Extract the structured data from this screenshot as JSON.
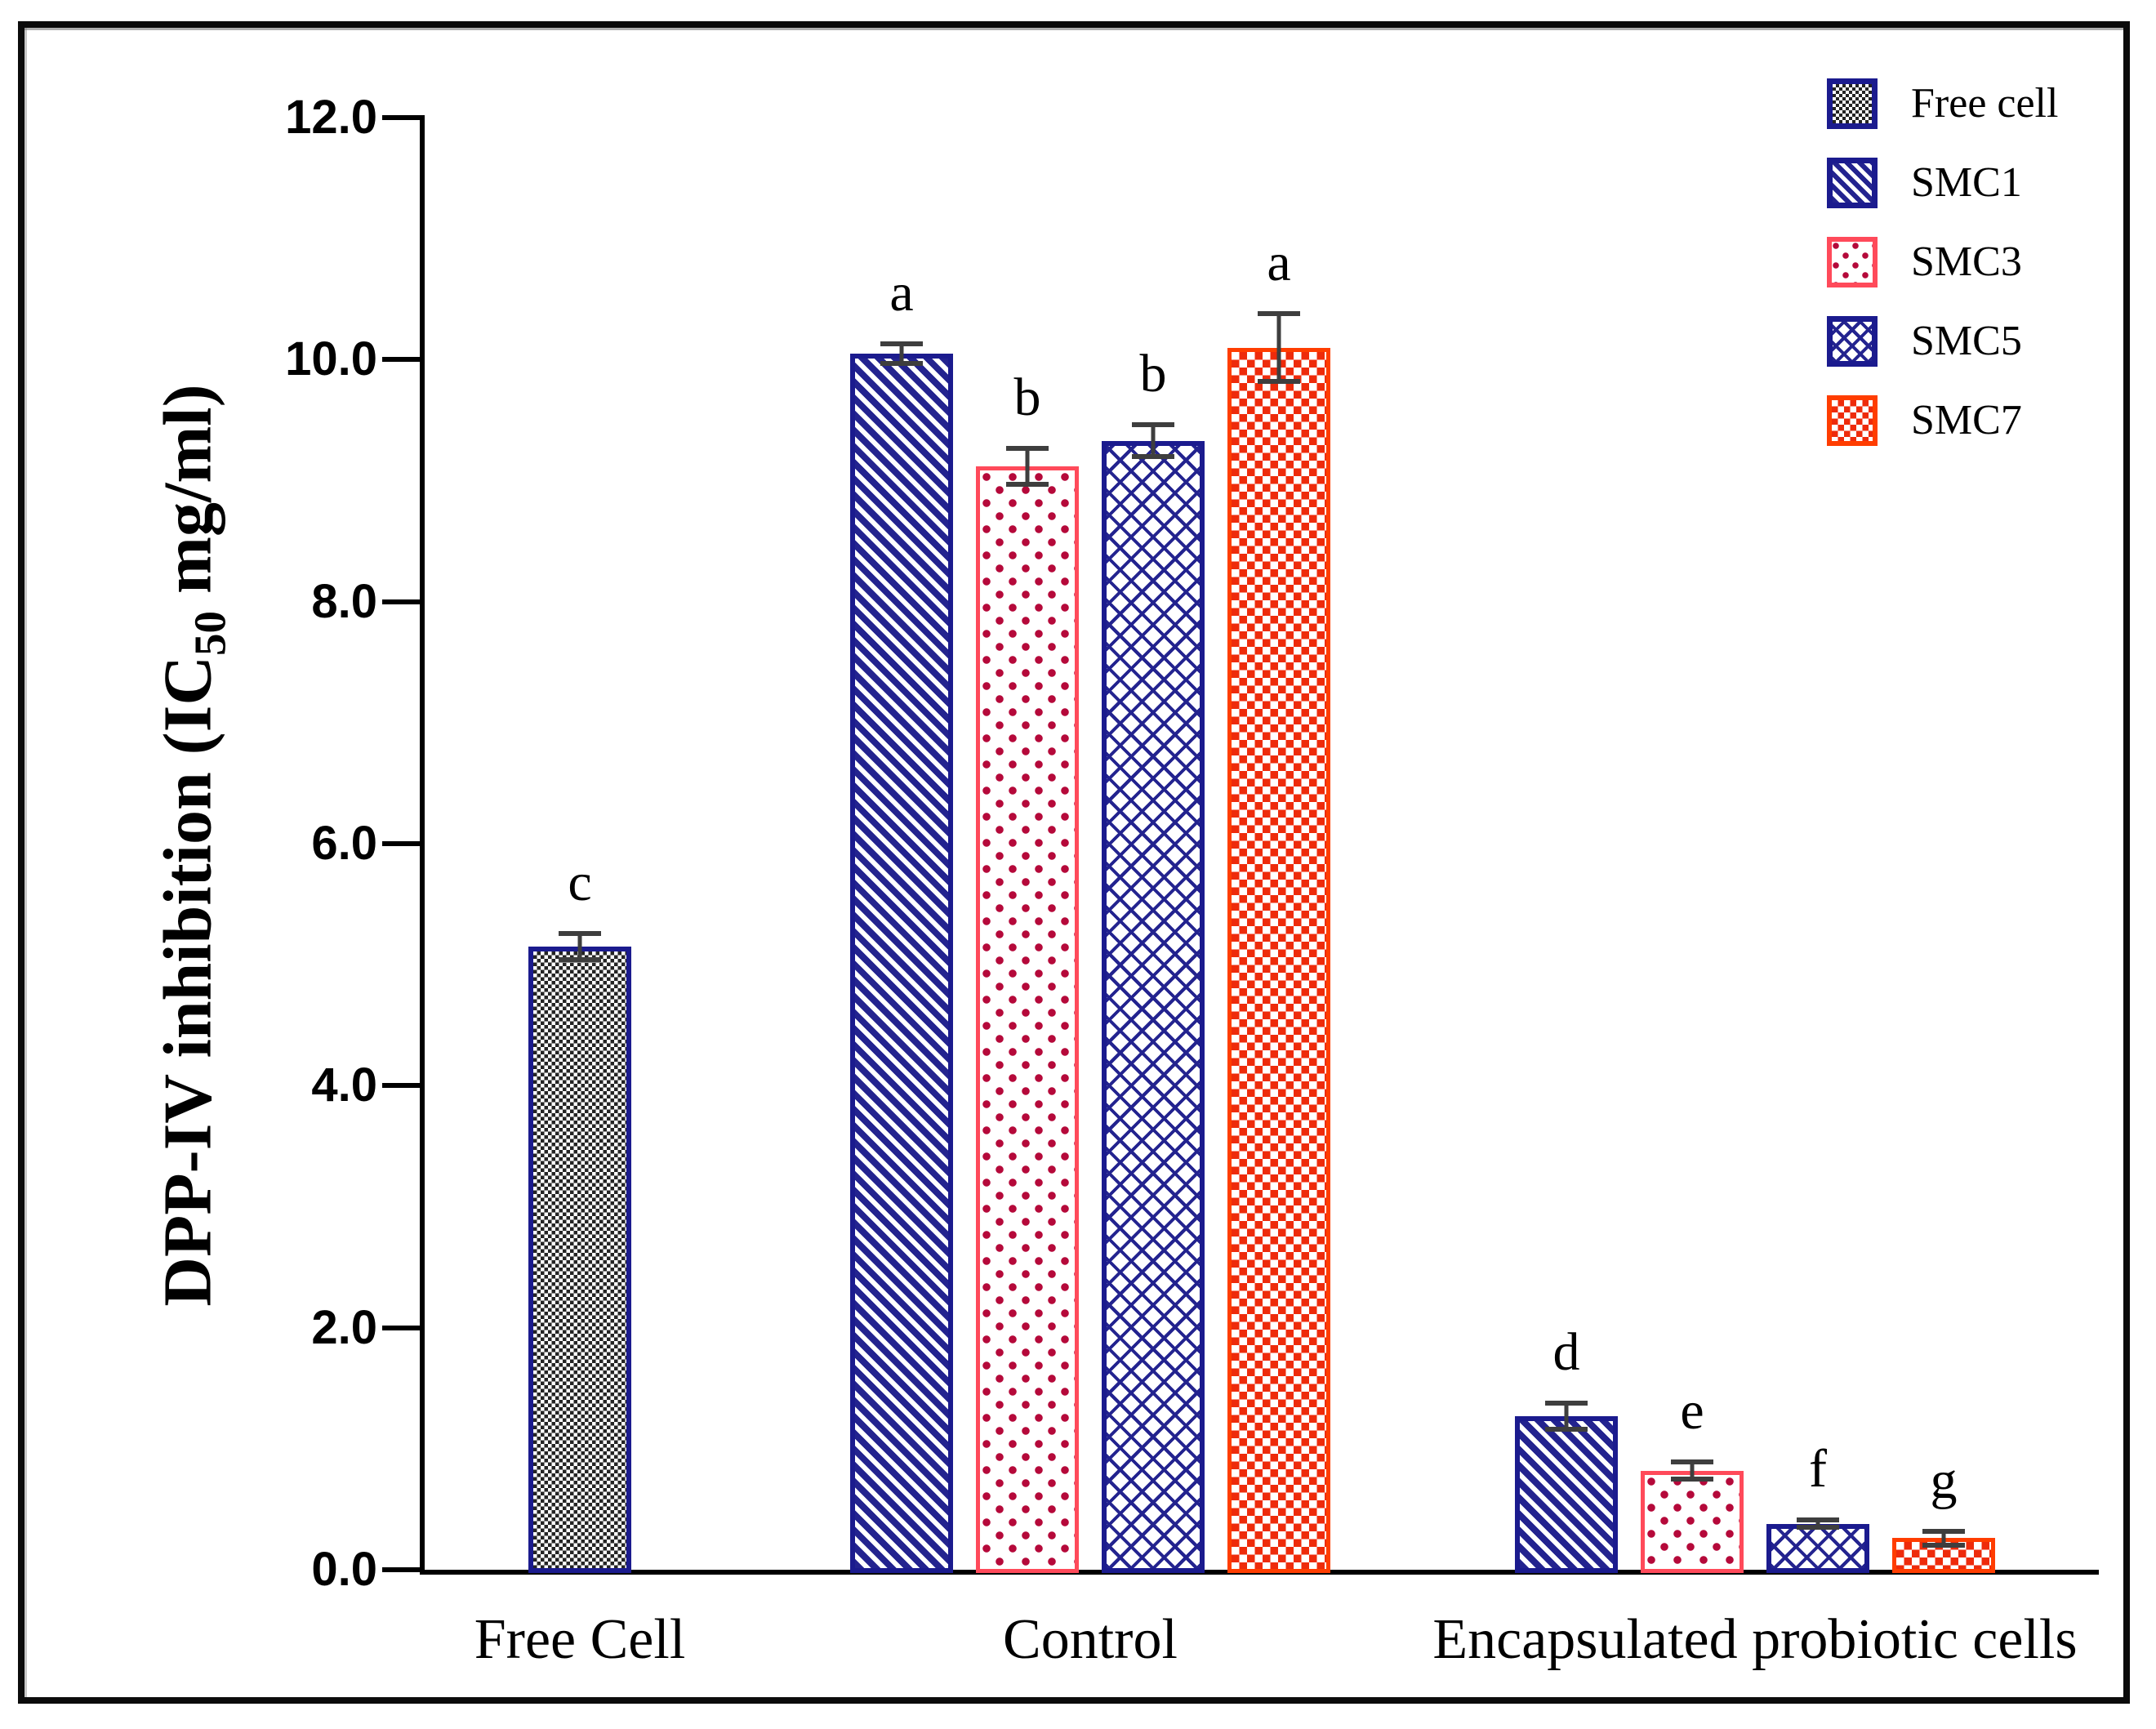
{
  "figure": {
    "ylabel_pre": "DPP-IV inhibition (IC",
    "ylabel_sub": "50",
    "ylabel_post": " mg/ml)"
  },
  "legend": {
    "position": "top-right",
    "entries": [
      {
        "label": "Free cell",
        "key": "free"
      },
      {
        "label": "SMC1",
        "key": "smc1"
      },
      {
        "label": "SMC3",
        "key": "smc3"
      },
      {
        "label": "SMC5",
        "key": "smc5"
      },
      {
        "label": "SMC7",
        "key": "smc7"
      }
    ]
  },
  "colors": {
    "navy": "#1b1b8e",
    "checker_black": "#242424",
    "smc3_border": "#ff4a5a",
    "smc3_dot": "#b5093a",
    "smc7_border": "#ff3d00",
    "smc7_square": "#ee2b0b",
    "error_bar": "#3e3e3e",
    "axis": "#000000"
  },
  "chart_data": {
    "type": "bar",
    "title": "",
    "xlabel": "",
    "ylabel": "DPP-IV inhibition (IC50 mg/ml)",
    "ylim": [
      0,
      12
    ],
    "grid": false,
    "legend_position": "top-right",
    "y_ticks": [
      {
        "v": 12,
        "label": "12.0"
      },
      {
        "v": 10,
        "label": "10.0"
      },
      {
        "v": 8,
        "label": "8.0"
      },
      {
        "v": 6,
        "label": "6.0"
      },
      {
        "v": 4,
        "label": "4.0"
      },
      {
        "v": 2,
        "label": "2.0"
      },
      {
        "v": 0,
        "label": "0.0"
      }
    ],
    "groups": [
      {
        "label": "Free Cell",
        "bars": [
          {
            "series": "Free cell",
            "key": "free",
            "value": 5.15,
            "error": 0.13,
            "letter": "c"
          }
        ]
      },
      {
        "label": "Control",
        "bars": [
          {
            "series": "SMC1",
            "key": "smc1",
            "value": 10.05,
            "error": 0.1,
            "letter": "a"
          },
          {
            "series": "SMC3",
            "key": "smc3",
            "value": 9.12,
            "error": 0.17,
            "letter": "b"
          },
          {
            "series": "SMC5",
            "key": "smc5",
            "value": 9.33,
            "error": 0.15,
            "letter": "b"
          },
          {
            "series": "SMC7",
            "key": "smc7",
            "value": 10.1,
            "error": 0.3,
            "letter": "a"
          }
        ]
      },
      {
        "label": "Encapsulated probiotic cells",
        "bars": [
          {
            "series": "SMC1",
            "key": "smc1",
            "value": 1.27,
            "error": 0.13,
            "letter": "d"
          },
          {
            "series": "SMC3",
            "key": "smc3",
            "value": 0.82,
            "error": 0.09,
            "letter": "e"
          },
          {
            "series": "SMC5",
            "key": "smc5",
            "value": 0.38,
            "error": 0.05,
            "letter": "f"
          },
          {
            "series": "SMC7",
            "key": "smc7",
            "value": 0.26,
            "error": 0.08,
            "letter": "g"
          }
        ]
      }
    ]
  }
}
